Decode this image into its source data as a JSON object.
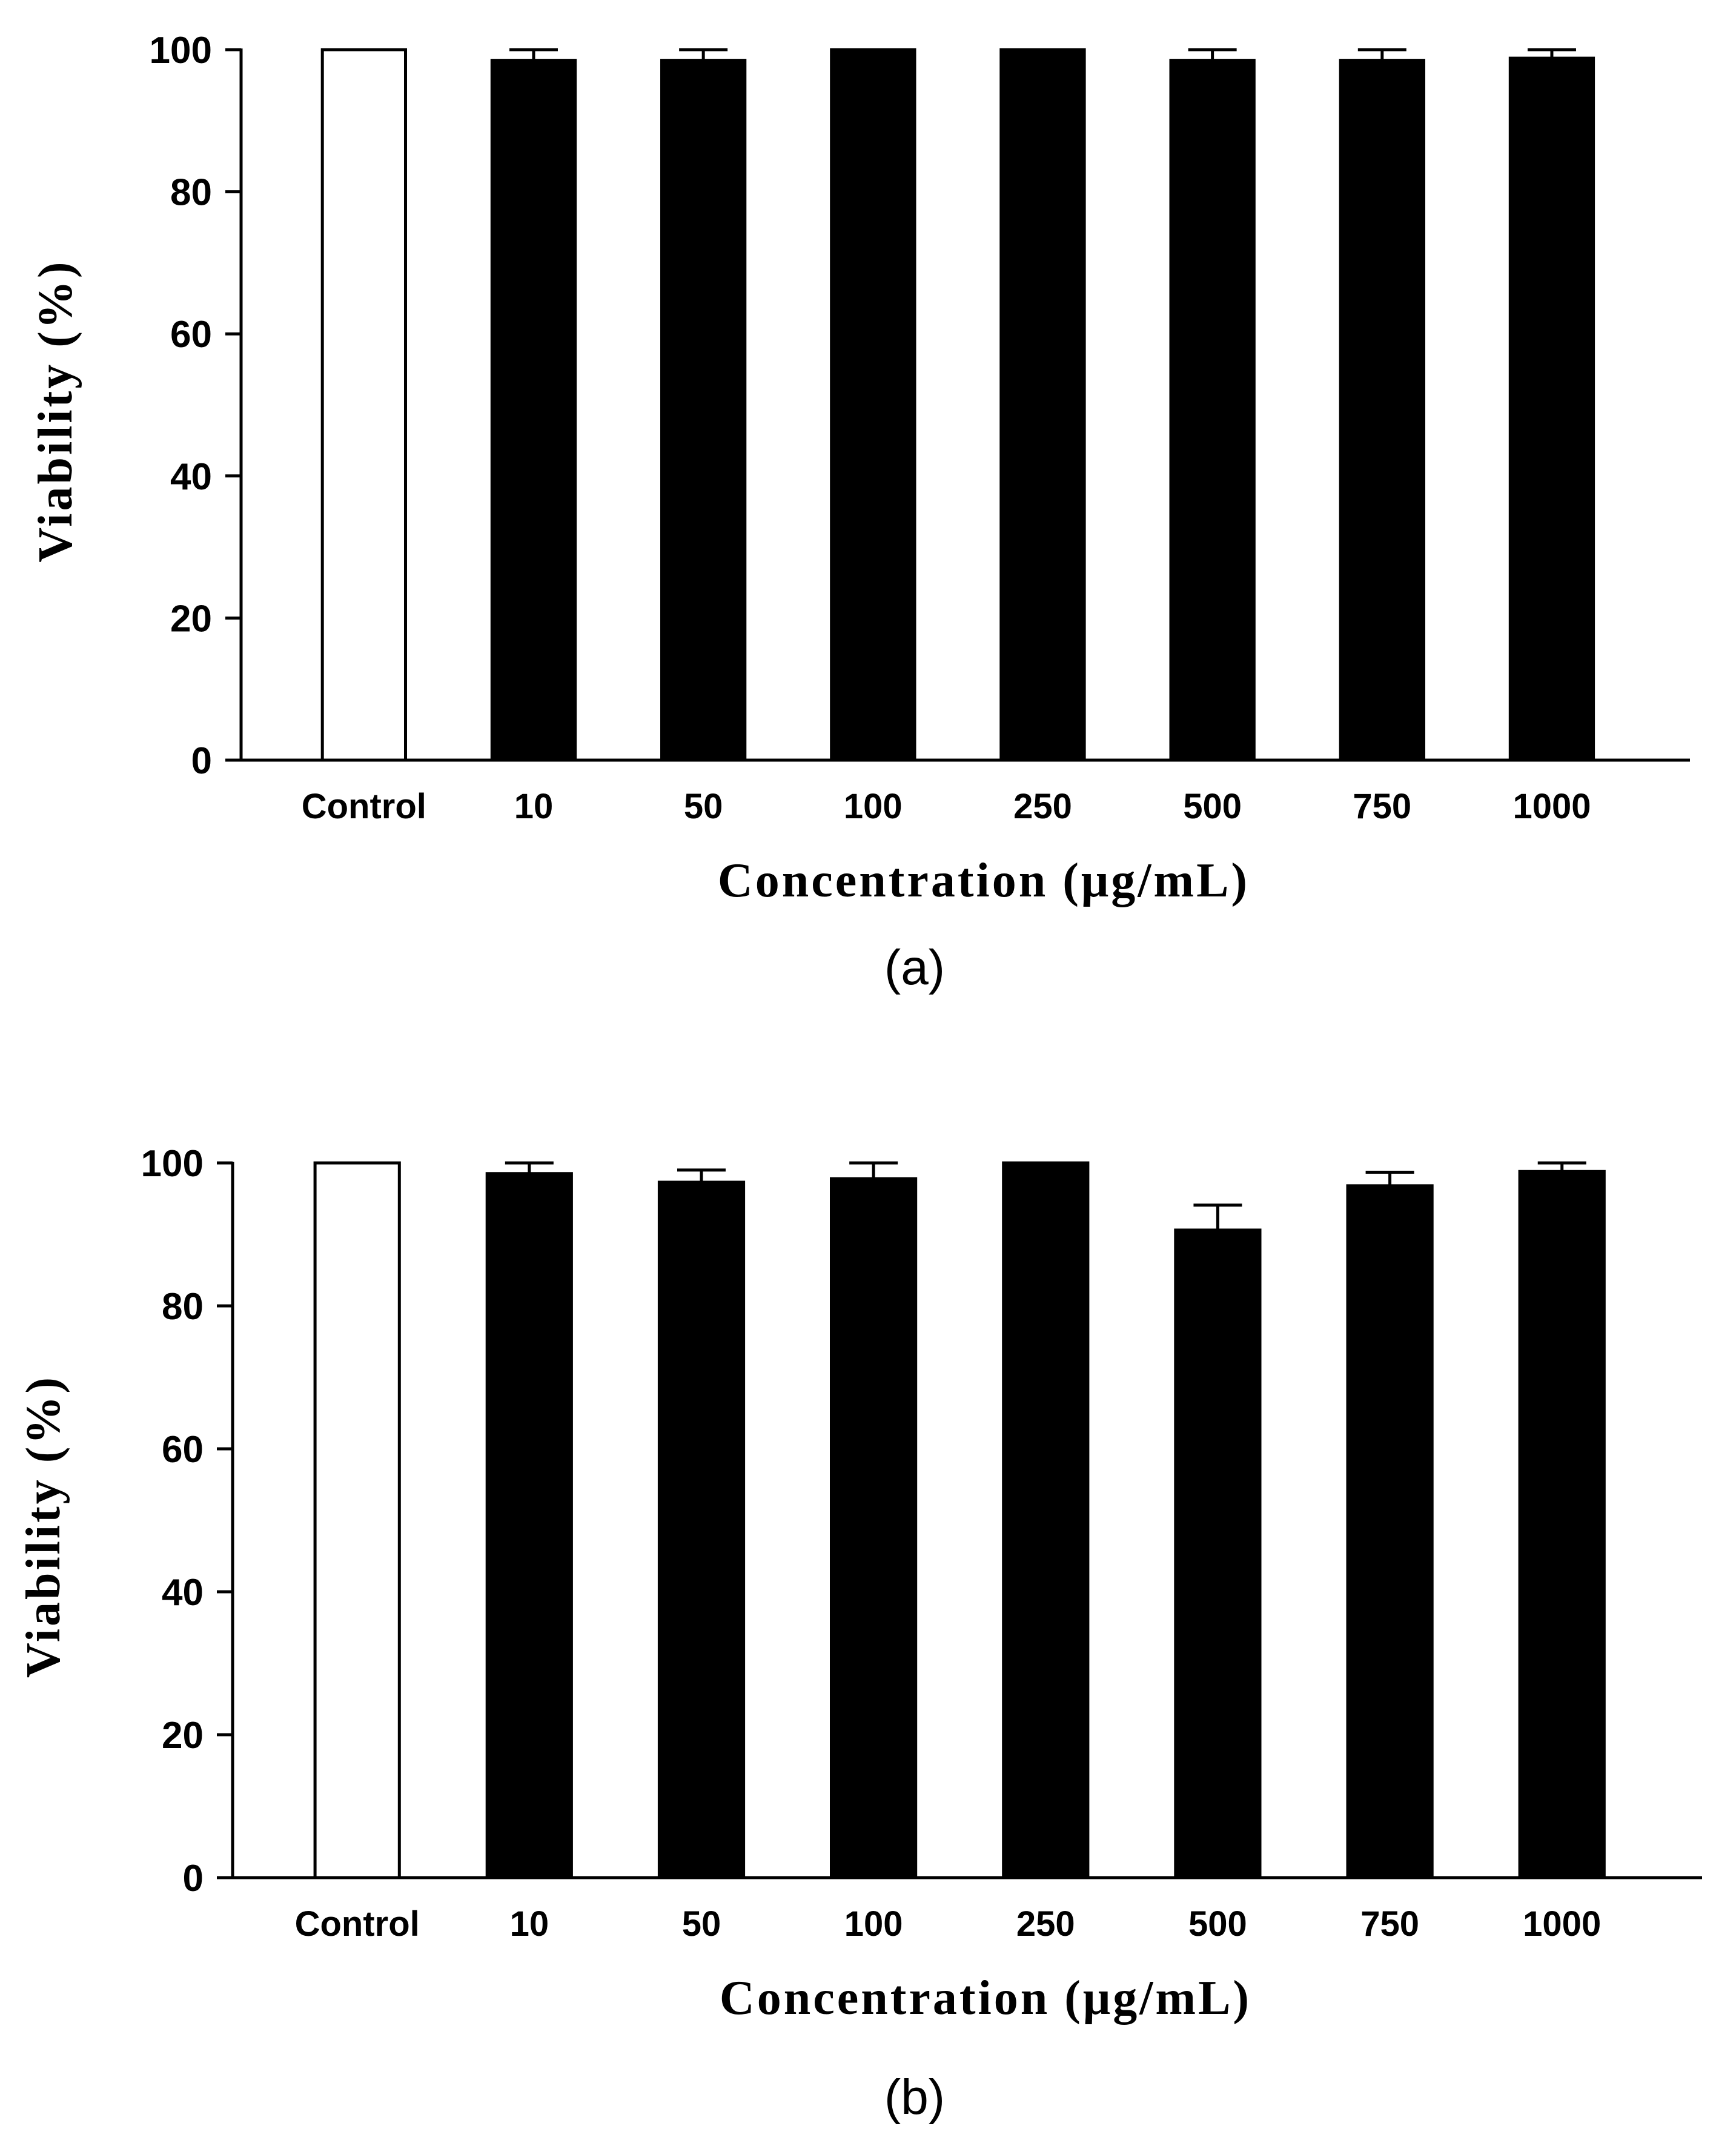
{
  "chart_data": [
    {
      "type": "bar",
      "panel_label": "(a)",
      "title": "",
      "xlabel": "Concentration  (μg/mL)",
      "ylabel": "Viability (%)",
      "ylim": [
        0,
        100
      ],
      "yticks": [
        0,
        20,
        40,
        60,
        80,
        100
      ],
      "categories": [
        "Control",
        "10",
        "50",
        "100",
        "250",
        "500",
        "750",
        "1000"
      ],
      "values": [
        100,
        98.5,
        98.5,
        100,
        100,
        98.5,
        98.5,
        98.8
      ],
      "errors": [
        0,
        1.5,
        1.5,
        0,
        0,
        1.5,
        1.5,
        1.2
      ],
      "bar_fills": [
        "#ffffff",
        "#000000",
        "#000000",
        "#000000",
        "#000000",
        "#000000",
        "#000000",
        "#000000"
      ]
    },
    {
      "type": "bar",
      "panel_label": "(b)",
      "title": "",
      "xlabel": "Concentration  (μg/mL)",
      "ylabel": "Viability (%)",
      "ylim": [
        0,
        100
      ],
      "yticks": [
        0,
        20,
        40,
        60,
        80,
        100
      ],
      "categories": [
        "Control",
        "10",
        "50",
        "100",
        "250",
        "500",
        "750",
        "1000"
      ],
      "values": [
        100,
        98.5,
        97.3,
        97.8,
        100,
        90.6,
        96.8,
        98.8
      ],
      "errors": [
        0,
        1.5,
        1.7,
        2.2,
        0,
        3.5,
        1.9,
        1.2
      ],
      "bar_fills": [
        "#ffffff",
        "#000000",
        "#000000",
        "#000000",
        "#000000",
        "#000000",
        "#000000",
        "#000000"
      ]
    }
  ]
}
